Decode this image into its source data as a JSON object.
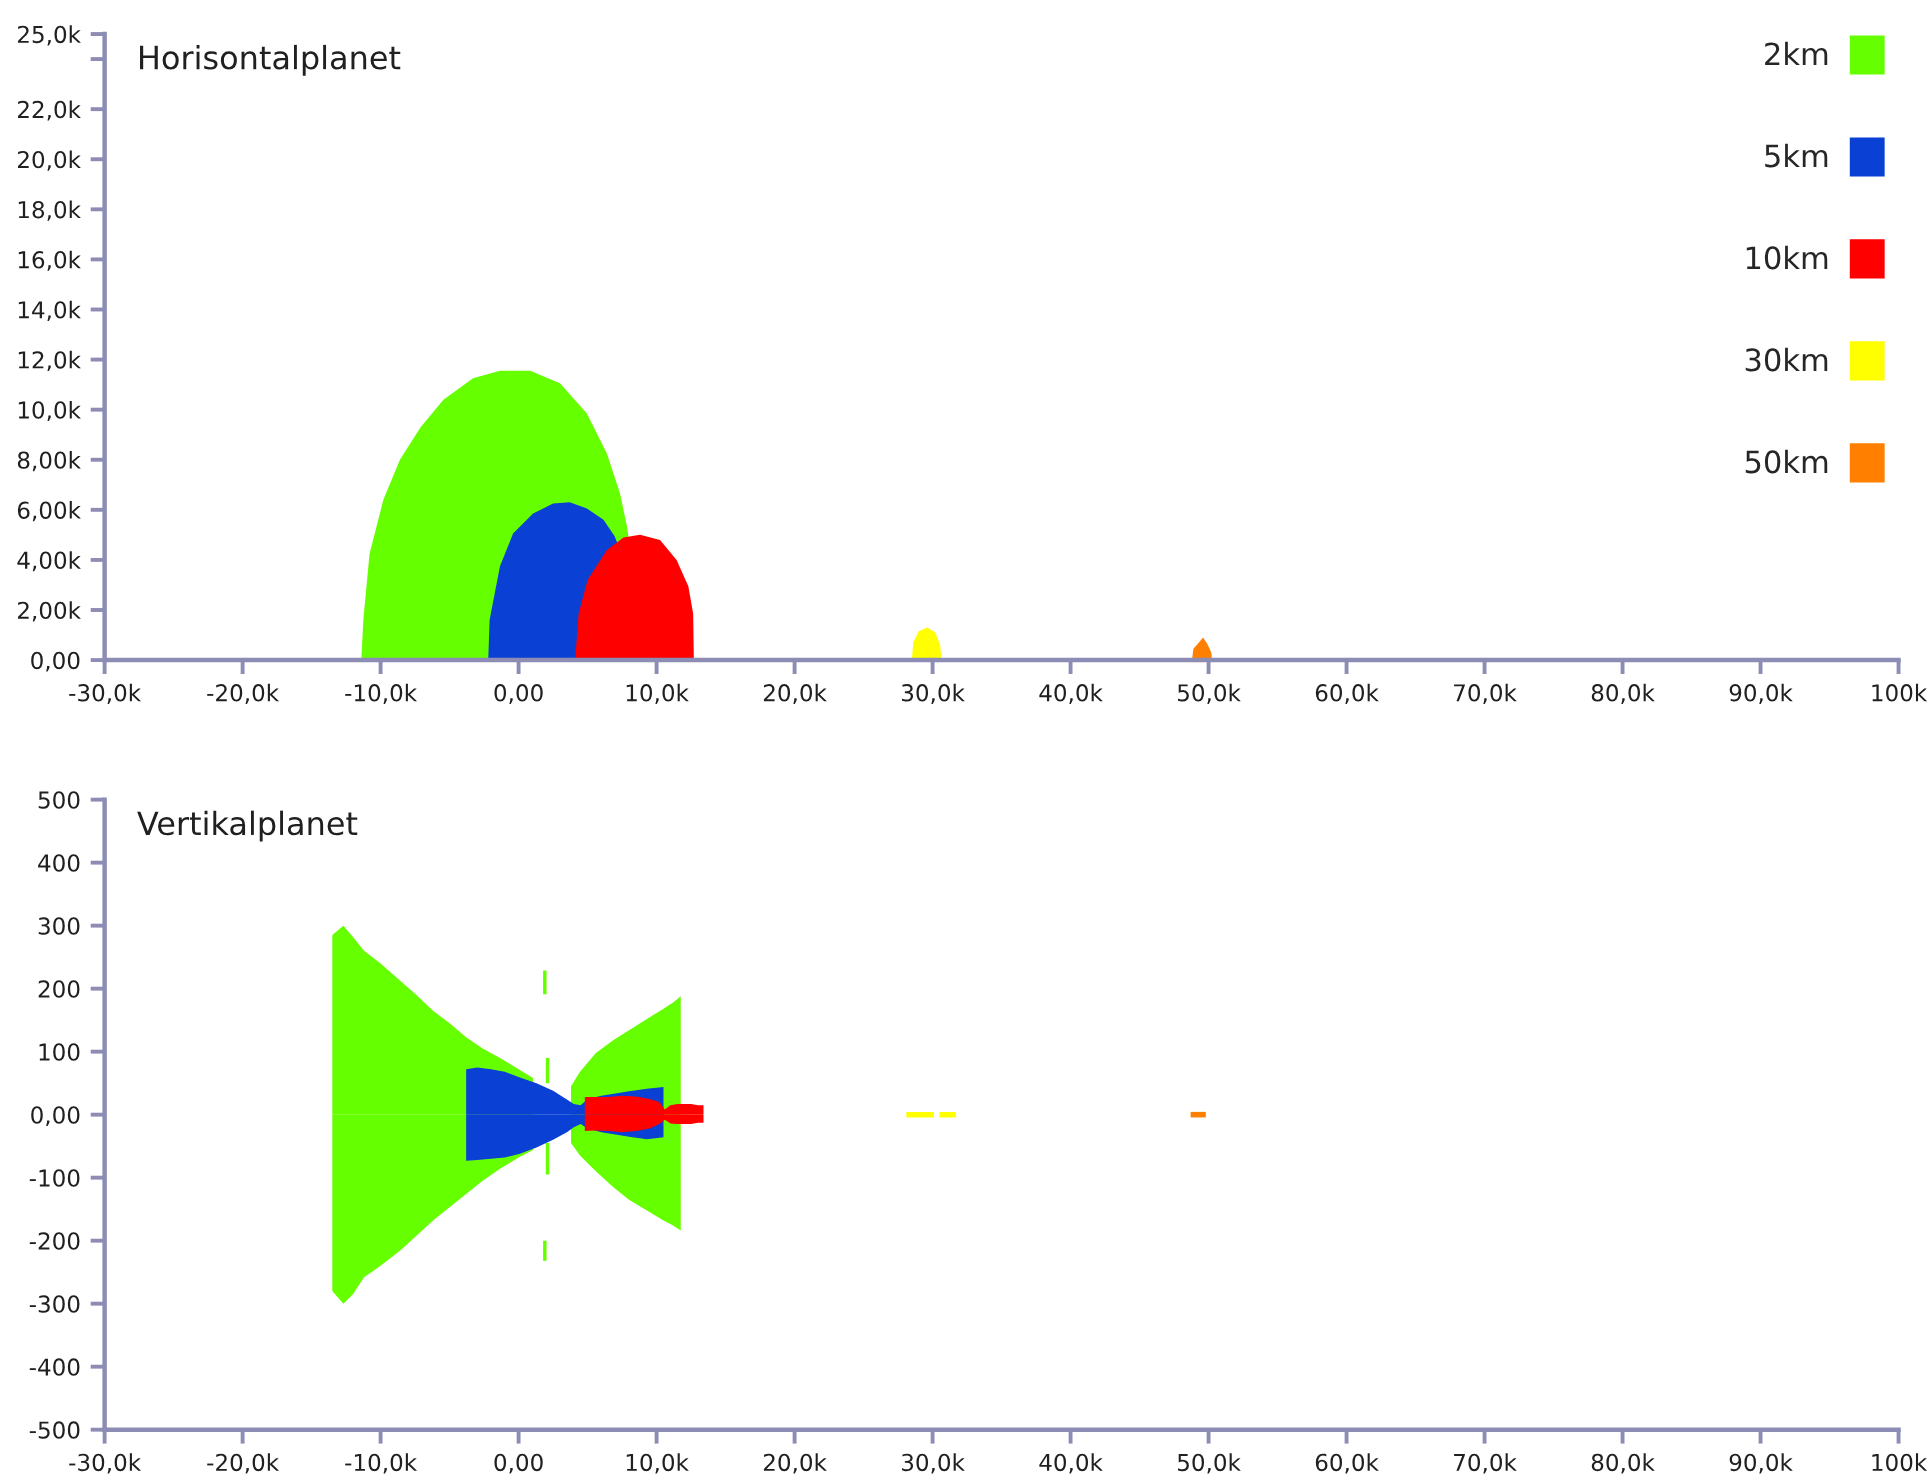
{
  "chart_data": [
    {
      "type": "area",
      "title": "Horisontalplanet",
      "legend": "top right",
      "xlim": [
        -30000,
        100000
      ],
      "xticks": [
        {
          "value": -30000,
          "label": "-30,0k"
        },
        {
          "value": -20000,
          "label": "-20,0k"
        },
        {
          "value": -10000,
          "label": "-10,0k"
        },
        {
          "value": 0,
          "label": "0,00"
        },
        {
          "value": 10000,
          "label": "10,0k"
        },
        {
          "value": 20000,
          "label": "20,0k"
        },
        {
          "value": 30000,
          "label": "30,0k"
        },
        {
          "value": 40000,
          "label": "40,0k"
        },
        {
          "value": 50000,
          "label": "50,0k"
        },
        {
          "value": 60000,
          "label": "60,0k"
        },
        {
          "value": 70000,
          "label": "70,0k"
        },
        {
          "value": 80000,
          "label": "80,0k"
        },
        {
          "value": 90000,
          "label": "90,0k"
        },
        {
          "value": 100000,
          "label": "100k"
        }
      ],
      "ylim": [
        0,
        25000
      ],
      "yticks": [
        {
          "value": 0,
          "label": "0,00"
        },
        {
          "value": 2000,
          "label": "2,00k"
        },
        {
          "value": 4000,
          "label": "4,00k"
        },
        {
          "value": 6000,
          "label": "6,00k"
        },
        {
          "value": 8000,
          "label": "8,00k"
        },
        {
          "value": 10000,
          "label": "10,0k"
        },
        {
          "value": 12000,
          "label": "12,0k"
        },
        {
          "value": 14000,
          "label": "14,0k"
        },
        {
          "value": 16000,
          "label": "16,0k"
        },
        {
          "value": 18000,
          "label": "18,0k"
        },
        {
          "value": 20000,
          "label": "20,0k"
        },
        {
          "value": 22000,
          "label": "22,0k"
        },
        {
          "value": 24000,
          "label": null
        },
        {
          "value": 25000,
          "label": "25,0k"
        }
      ],
      "series": [
        {
          "name": "2km",
          "color": "#66ff00",
          "x": [
            -11400,
            -11250,
            -10800,
            -9800,
            -8600,
            -7100,
            -5450,
            -3300,
            -1350,
            850,
            3000,
            4950,
            6400,
            7350,
            7850,
            8000
          ],
          "values": [
            0,
            1600,
            4250,
            6400,
            8000,
            9300,
            10400,
            11250,
            11550,
            11550,
            11050,
            9850,
            8250,
            6650,
            5350,
            4800
          ]
        },
        {
          "name": "5km",
          "color": "#0a41d4",
          "x": [
            -2200,
            -2100,
            -1350,
            -400,
            1050,
            2500,
            3700,
            4950,
            6150,
            6950,
            7250
          ],
          "values": [
            0,
            1600,
            3750,
            5050,
            5850,
            6250,
            6300,
            6050,
            5600,
            4950,
            4550
          ]
        },
        {
          "name": "10km",
          "color": "#ff0000",
          "x": [
            4100,
            4350,
            5000,
            6400,
            7600,
            8800,
            10250,
            11450,
            12300,
            12650,
            12700
          ],
          "values": [
            0,
            1850,
            3200,
            4400,
            4900,
            5000,
            4800,
            4000,
            2950,
            1850,
            0
          ]
        },
        {
          "name": "30km",
          "color": "#ffff00",
          "x": [
            28500,
            28600,
            29000,
            29600,
            30200,
            30550,
            30650
          ],
          "values": [
            0,
            700,
            1150,
            1300,
            1100,
            600,
            0
          ]
        },
        {
          "name": "50km",
          "color": "#ff8000",
          "x": [
            48800,
            48900,
            49300,
            49600,
            49900,
            50200,
            50250
          ],
          "values": [
            0,
            450,
            700,
            900,
            650,
            300,
            0
          ]
        }
      ]
    },
    {
      "type": "area",
      "title": "Vertikalplanet",
      "xlim": [
        -30000,
        100000
      ],
      "xticks": [
        {
          "value": -30000,
          "label": "-30,0k"
        },
        {
          "value": -20000,
          "label": "-20,0k"
        },
        {
          "value": -10000,
          "label": "-10,0k"
        },
        {
          "value": 0,
          "label": "0,00"
        },
        {
          "value": 10000,
          "label": "10,0k"
        },
        {
          "value": 20000,
          "label": "20,0k"
        },
        {
          "value": 30000,
          "label": "30,0k"
        },
        {
          "value": 40000,
          "label": "40,0k"
        },
        {
          "value": 50000,
          "label": "50,0k"
        },
        {
          "value": 60000,
          "label": "60,0k"
        },
        {
          "value": 70000,
          "label": "70,0k"
        },
        {
          "value": 80000,
          "label": "80,0k"
        },
        {
          "value": 90000,
          "label": "90,0k"
        },
        {
          "value": 100000,
          "label": "100k"
        }
      ],
      "ylim": [
        -500,
        500
      ],
      "yticks": [
        -500,
        -400,
        -300,
        -200,
        -100,
        {
          "value": 0,
          "label": "0,00"
        },
        100,
        200,
        300,
        400,
        500
      ],
      "series": [
        {
          "color": "#66ff00",
          "x": [
            -13500,
            -12700,
            -12000,
            -11200,
            -10000,
            -8600,
            -7400,
            -6200,
            -5000,
            -3800,
            -2600,
            -1350,
            0,
            1050,
            2000,
            3800,
            4450,
            5600,
            6850,
            8000,
            9300,
            10500,
            11200,
            11750
          ],
          "values": [
            285,
            300,
            282,
            260,
            240,
            213,
            190,
            165,
            145,
            123,
            105,
            90,
            72,
            58,
            null,
            45,
            68,
            98,
            118,
            134,
            152,
            168,
            178,
            188
          ]
        },
        {
          "color": "#66ff00",
          "x": [
            -13500,
            -12700,
            -12000,
            -11200,
            -10000,
            -8600,
            -7400,
            -6200,
            -5000,
            -3800,
            -2600,
            -1350,
            0,
            1050,
            2000,
            3800,
            4450,
            5600,
            6850,
            8000,
            9300,
            10500,
            11200,
            11750
          ],
          "values": [
            -280,
            -300,
            -285,
            -258,
            -240,
            -216,
            -192,
            -168,
            -147,
            -126,
            -105,
            -86,
            -68,
            -56,
            null,
            -45,
            -65,
            -90,
            -115,
            -135,
            -152,
            -168,
            -176,
            -184
          ]
        },
        {
          "type": "bar",
          "color": "#66ff00",
          "x": [
            1900,
            2100
          ],
          "base": [
            191,
            50
          ],
          "values": [
            38,
            40
          ]
        },
        {
          "type": "bar",
          "color": "#66ff00",
          "x": [
            1900,
            2100
          ],
          "base": [
            -232,
            -95
          ],
          "values": [
            32,
            50
          ]
        },
        {
          "color": "#0a41d4",
          "x": [
            -3800,
            -3000,
            -2000,
            -1000,
            100,
            1300,
            2500,
            3500,
            4000,
            4500,
            5000,
            6000,
            6900,
            8000,
            9300,
            10500
          ],
          "values": [
            72,
            75,
            72,
            68,
            59,
            50,
            38,
            24,
            17,
            15,
            25,
            30,
            33,
            37,
            41,
            44
          ]
        },
        {
          "color": "#0a41d4",
          "x": [
            -3800,
            -3000,
            -2000,
            -1000,
            100,
            1300,
            2500,
            3500,
            4000,
            4500,
            5000,
            6000,
            6900,
            8000,
            9300,
            10500
          ],
          "values": [
            -73,
            -72,
            -70,
            -68,
            -62,
            -52,
            -40,
            -28,
            -20,
            -15,
            -22,
            -28,
            -31,
            -35,
            -39,
            -36
          ]
        },
        {
          "color": "#ff0000",
          "x": [
            4800,
            5500,
            6500,
            7500,
            8500,
            9500,
            10200,
            10600,
            11000,
            11500,
            12500,
            13000,
            13400
          ],
          "values": [
            28,
            28,
            28,
            30,
            29,
            25,
            20,
            8,
            15,
            17,
            17,
            15,
            15
          ]
        },
        {
          "color": "#fe0000",
          "x": [
            4800,
            5500,
            6500,
            7500,
            8500,
            9500,
            10200,
            10600,
            11000,
            11500,
            12500,
            13000,
            13400
          ],
          "values": [
            -26,
            -25,
            -26,
            -28,
            -26,
            -22,
            -15,
            -8,
            -14,
            -15,
            -15,
            -13,
            -13
          ]
        },
        {
          "type": "line",
          "color": "#ffff00",
          "x": [
            28100,
            30100,
            30300,
            30500,
            31700
          ],
          "values": [
            0,
            0,
            null,
            0,
            0
          ]
        },
        {
          "type": "line",
          "color": "#ff8000",
          "x": [
            48700,
            49800
          ],
          "values": [
            0,
            0
          ]
        }
      ]
    }
  ]
}
